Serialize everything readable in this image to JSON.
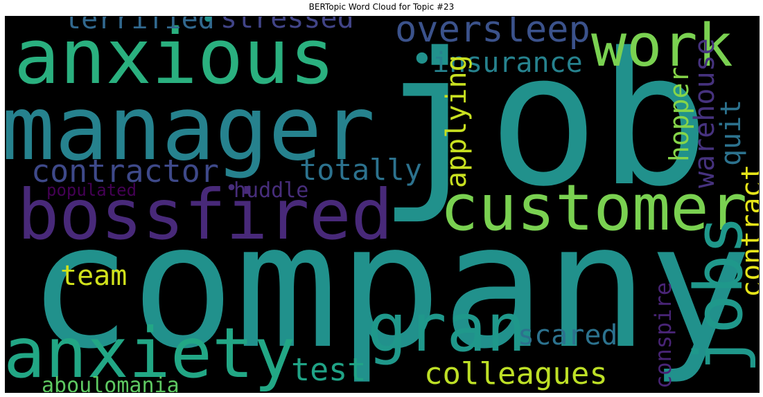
{
  "title": "BERTopic Word Cloud for Topic #23",
  "chart_data": {
    "type": "wordcloud",
    "background": "#000000",
    "colormap": "viridis",
    "words": [
      {
        "text": "company",
        "color": "#21918c"
      },
      {
        "text": "job",
        "color": "#21918c"
      },
      {
        "text": "manager",
        "color": "#26828e"
      },
      {
        "text": "anxious",
        "color": "#2ab07f"
      },
      {
        "text": "bossfired",
        "color": "#482979"
      },
      {
        "text": "customer",
        "color": "#7ad151"
      },
      {
        "text": "anxiety",
        "color": "#22a785"
      },
      {
        "text": "gran",
        "color": "#1f988b"
      },
      {
        "text": "jobs",
        "color": "#1f988b"
      },
      {
        "text": "work",
        "color": "#7ad151"
      },
      {
        "text": "oversleep",
        "color": "#3b528b"
      },
      {
        "text": "contractor",
        "color": "#3e4989"
      },
      {
        "text": "totally",
        "color": "#2c728e"
      },
      {
        "text": "insurance",
        "color": "#26828e"
      },
      {
        "text": "terrified",
        "color": "#31688e"
      },
      {
        "text": "stressed",
        "color": "#414487"
      },
      {
        "text": "colleagues",
        "color": "#bddf26"
      },
      {
        "text": "test",
        "color": "#20a386"
      },
      {
        "text": "team",
        "color": "#d0e11c"
      },
      {
        "text": "applying",
        "color": "#c8e020"
      },
      {
        "text": "quit",
        "color": "#2c728e"
      },
      {
        "text": "warehouse",
        "color": "#46327e"
      },
      {
        "text": "hopper",
        "color": "#86d549"
      },
      {
        "text": "contract",
        "color": "#e5e419"
      },
      {
        "text": "scared",
        "color": "#2c728e"
      },
      {
        "text": "conspire",
        "color": "#482475"
      },
      {
        "text": "huddle",
        "color": "#472d7b"
      },
      {
        "text": "populated",
        "color": "#440154"
      },
      {
        "text": "aboulomania",
        "color": "#5ec962"
      },
      {
        "text": "•",
        "color": "#21918c"
      },
      {
        "text": "•",
        "color": "#21918c"
      },
      {
        "text": "•",
        "color": "#472d7b"
      }
    ]
  }
}
